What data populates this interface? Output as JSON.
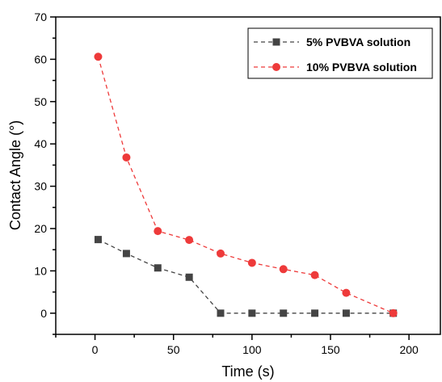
{
  "chart_data": {
    "type": "line",
    "xlabel": "Time (s)",
    "ylabel": "Contact Angle (°)",
    "xlim": [
      -25,
      220
    ],
    "ylim": [
      -5,
      70
    ],
    "x_ticks": [
      0,
      50,
      100,
      150,
      200
    ],
    "y_ticks": [
      0,
      10,
      20,
      30,
      40,
      50,
      60,
      70
    ],
    "grid": false,
    "legend_position": "top-right",
    "series": [
      {
        "name": "5% PVBVA solution",
        "color": "#444444",
        "marker": "square",
        "line_style": "dashed",
        "x": [
          2,
          20,
          40,
          60,
          80,
          100,
          120,
          140,
          160,
          190
        ],
        "y": [
          17.4,
          14.1,
          10.7,
          8.5,
          0,
          0,
          0,
          0,
          0,
          0
        ]
      },
      {
        "name": "10% PVBVA solution",
        "color": "#ee3a3a",
        "marker": "circle",
        "line_style": "dashed",
        "x": [
          2,
          20,
          40,
          60,
          80,
          100,
          120,
          140,
          160,
          190
        ],
        "y": [
          60.6,
          36.8,
          19.4,
          17.3,
          14.1,
          11.9,
          10.4,
          9.0,
          4.8,
          0
        ]
      }
    ]
  }
}
